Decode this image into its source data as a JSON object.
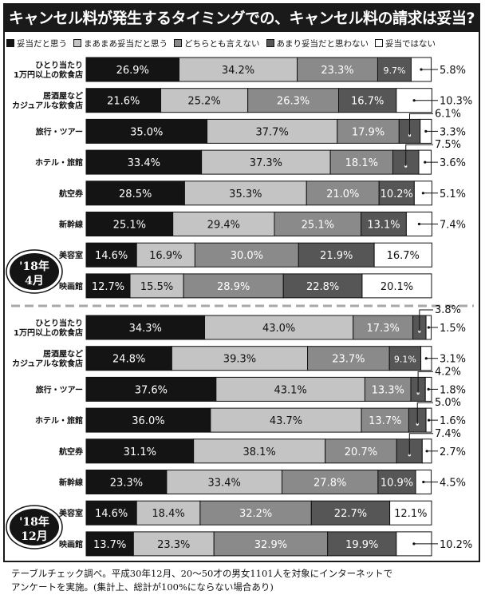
{
  "title": "キャンセル料が発生するタイミングでの、キャンセル料の請求は妥当?",
  "legend": [
    {
      "label": "妥当だと思う",
      "color": "#141414"
    },
    {
      "label": "まあまあ妥当だと思う",
      "color": "#c4c4c4"
    },
    {
      "label": "どちらとも言えない",
      "color": "#8a8a8a"
    },
    {
      "label": "あまり妥当だと思わない",
      "color": "#565656"
    },
    {
      "label": "妥当ではない",
      "color": "#ffffff"
    }
  ],
  "footnote": {
    "line1": "テーブルチェック調べ。平成30年12月、20〜50才の男女1101人を対象にインターネットで",
    "line2": "アンケートを実施。(集計上、総計が100%にならない場合あり)"
  },
  "chart_data": [
    {
      "type": "bar",
      "stacked": true,
      "period": "'18年4月",
      "categories": [
        "ひとり当たり\n1万円以上の飲食店",
        "居酒屋など\nカジュアルな飲食店",
        "旅行・ツアー",
        "ホテル・旅館",
        "航空券",
        "新幹線",
        "美容室",
        "映画館"
      ],
      "series": [
        {
          "name": "妥当だと思う",
          "values": [
            26.9,
            21.6,
            35.0,
            33.4,
            28.5,
            25.1,
            14.6,
            12.7
          ]
        },
        {
          "name": "まあまあ妥当だと思う",
          "values": [
            34.2,
            25.2,
            37.7,
            37.3,
            35.3,
            29.4,
            16.9,
            15.5
          ]
        },
        {
          "name": "どちらとも言えない",
          "values": [
            23.3,
            26.3,
            17.9,
            18.1,
            21.0,
            25.1,
            30.0,
            28.9
          ]
        },
        {
          "name": "あまり妥当だと思わない",
          "values": [
            9.7,
            16.7,
            6.1,
            7.5,
            10.2,
            13.1,
            21.9,
            22.8
          ]
        },
        {
          "name": "妥当ではない",
          "values": [
            5.8,
            10.3,
            3.3,
            3.6,
            5.1,
            7.4,
            16.7,
            20.1
          ]
        }
      ]
    },
    {
      "type": "bar",
      "stacked": true,
      "period": "'18年12月",
      "categories": [
        "ひとり当たり\n1万円以上の飲食店",
        "居酒屋など\nカジュアルな飲食店",
        "旅行・ツアー",
        "ホテル・旅館",
        "航空券",
        "新幹線",
        "美容室",
        "映画館"
      ],
      "series": [
        {
          "name": "妥当だと思う",
          "values": [
            34.3,
            24.8,
            37.6,
            36.0,
            31.1,
            23.3,
            14.6,
            13.7
          ]
        },
        {
          "name": "まあまあ妥当だと思う",
          "values": [
            43.0,
            39.3,
            43.1,
            43.7,
            38.1,
            33.4,
            18.4,
            23.3
          ]
        },
        {
          "name": "どちらとも言えない",
          "values": [
            17.3,
            23.7,
            13.3,
            13.7,
            20.7,
            27.8,
            32.2,
            32.9
          ]
        },
        {
          "name": "あまり妥当だと思わない",
          "values": [
            3.8,
            9.1,
            4.2,
            5.0,
            7.4,
            10.9,
            22.7,
            19.9
          ]
        },
        {
          "name": "妥当ではない",
          "values": [
            1.5,
            3.1,
            1.8,
            1.6,
            2.7,
            4.5,
            12.1,
            10.2
          ]
        }
      ]
    }
  ]
}
